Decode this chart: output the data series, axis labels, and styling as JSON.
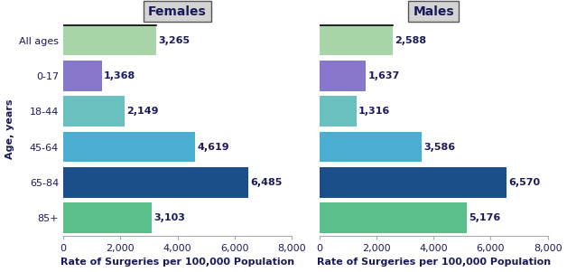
{
  "female_values": [
    3265,
    1368,
    2149,
    4619,
    6485,
    3103
  ],
  "male_values": [
    2588,
    1637,
    1316,
    3586,
    6570,
    5176
  ],
  "categories": [
    "All ages",
    "0-17",
    "18-44",
    "45-64",
    "65-84",
    "85+"
  ],
  "bar_colors": [
    "#a8d5a8",
    "#8878cc",
    "#6abfbf",
    "#4aaed0",
    "#1a4f8a",
    "#5abf8a"
  ],
  "female_title": "Females",
  "male_title": "Males",
  "xlabel": "Rate of Surgeries per 100,000 Population",
  "ylabel": "Age, years",
  "xlim": [
    0,
    8000
  ],
  "xticks": [
    0,
    2000,
    4000,
    6000,
    8000
  ],
  "xticklabels": [
    "0",
    "2,000",
    "4,000",
    "6,000",
    "8,000"
  ],
  "title_fontsize": 10,
  "label_fontsize": 8,
  "tick_fontsize": 8,
  "value_fontsize": 8,
  "xlabel_fontsize": 8,
  "bar_height": 0.85,
  "title_box_color": "#d3d3d3",
  "title_text_color": "#1a1a5a",
  "value_text_color": "#1a1a5a",
  "axis_label_color": "#1a1a5a",
  "tick_label_color": "#1a1a5a",
  "bg_color": "#ffffff",
  "spine_color": "#aaaaaa",
  "allages_border_color": "#000000"
}
